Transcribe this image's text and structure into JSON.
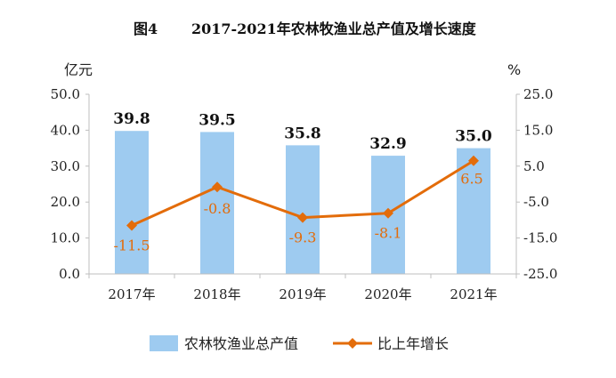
{
  "chart_data": {
    "type": "bar",
    "title_prefix": "图4",
    "title": "2017-2021年农林牧渔业总产值及增长速度",
    "left_unit": "亿元",
    "right_unit": "%",
    "categories": [
      "2017年",
      "2018年",
      "2019年",
      "2020年",
      "2021年"
    ],
    "series": [
      {
        "name": "农林牧渔业总产值",
        "type": "bar",
        "axis": "left",
        "color": "#9ecbf0",
        "values": [
          39.8,
          39.5,
          35.8,
          32.9,
          35.0
        ],
        "labels": [
          "39.8",
          "39.5",
          "35.8",
          "32.9",
          "35.0"
        ]
      },
      {
        "name": "比上年增长",
        "type": "line",
        "axis": "right",
        "color": "#e36c0a",
        "values": [
          -11.5,
          -0.8,
          -9.3,
          -8.1,
          6.5
        ],
        "labels": [
          "-11.5",
          "-0.8",
          "-9.3",
          "-8.1",
          "6.5"
        ]
      }
    ],
    "y_left": {
      "range": [
        0,
        50
      ],
      "ticks": [
        "0.0",
        "10.0",
        "20.0",
        "30.0",
        "40.0",
        "50.0"
      ]
    },
    "y_right": {
      "range": [
        -25,
        25
      ],
      "ticks": [
        "-25.0",
        "-15.0",
        "-5.0",
        "5.0",
        "15.0",
        "25.0"
      ]
    },
    "grid": false,
    "legend_position": "bottom"
  }
}
